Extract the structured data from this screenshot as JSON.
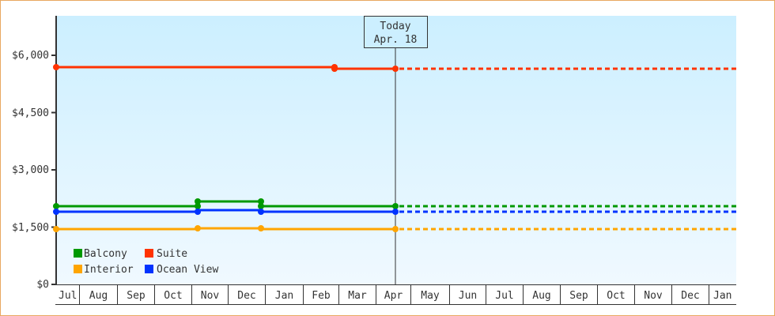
{
  "chart_data": {
    "type": "line",
    "title": "",
    "xlabel": "",
    "ylabel": "",
    "ylim": [
      0,
      7000
    ],
    "y_ticks": [
      "$0",
      "$1,500",
      "$3,000",
      "$4,500",
      "$6,000"
    ],
    "y_tick_values": [
      0,
      1500,
      3000,
      4500,
      6000
    ],
    "x_ticks": [
      "Jul",
      "Aug",
      "Sep",
      "Oct",
      "Nov",
      "Dec",
      "Jan",
      "Feb",
      "Mar",
      "Apr",
      "May",
      "Jun",
      "Jul",
      "Aug",
      "Sep",
      "Oct",
      "Nov",
      "Dec",
      "Jan"
    ],
    "today_marker": {
      "line1": "Today",
      "line2": "Apr. 18"
    },
    "legend": [
      "Balcony",
      "Suite",
      "Interior",
      "Ocean View"
    ],
    "series": [
      {
        "name": "Suite",
        "color": "#ff3300",
        "points": [
          {
            "x": "Jul",
            "y": 5680
          },
          {
            "x": "Mar 1",
            "y": 5680
          },
          {
            "x": "Mar 1",
            "y": 5650
          },
          {
            "x": "Apr 18",
            "y": 5650
          }
        ],
        "projected": 5650
      },
      {
        "name": "Balcony",
        "color": "#009900",
        "points": [
          {
            "x": "Jul",
            "y": 2060
          },
          {
            "x": "Nov",
            "y": 2060
          },
          {
            "x": "Nov",
            "y": 2180
          },
          {
            "x": "Dec 20",
            "y": 2180
          },
          {
            "x": "Dec 20",
            "y": 2060
          },
          {
            "x": "Apr 18",
            "y": 2060
          }
        ],
        "projected": 2060
      },
      {
        "name": "Ocean View",
        "color": "#0033ff",
        "points": [
          {
            "x": "Jul",
            "y": 1920
          },
          {
            "x": "Nov",
            "y": 1920
          },
          {
            "x": "Nov",
            "y": 1950
          },
          {
            "x": "Dec 20",
            "y": 1950
          },
          {
            "x": "Dec 20",
            "y": 1920
          },
          {
            "x": "Apr 18",
            "y": 1920
          }
        ],
        "projected": 1920
      },
      {
        "name": "Interior",
        "color": "#ffa500",
        "points": [
          {
            "x": "Jul",
            "y": 1460
          },
          {
            "x": "Nov",
            "y": 1460
          },
          {
            "x": "Nov",
            "y": 1480
          },
          {
            "x": "Dec 20",
            "y": 1480
          },
          {
            "x": "Dec 20",
            "y": 1460
          },
          {
            "x": "Apr 18",
            "y": 1460
          }
        ],
        "projected": 1460
      }
    ]
  },
  "yaxis": {
    "t0": "$0",
    "t1": "$1,500",
    "t2": "$3,000",
    "t3": "$4,500",
    "t4": "$6,000"
  },
  "today": {
    "line1": "Today",
    "line2": "Apr. 18"
  },
  "legend": {
    "balcony": "Balcony",
    "suite": "Suite",
    "interior": "Interior",
    "ocean": "Ocean View"
  },
  "months": [
    "Jul",
    "Aug",
    "Sep",
    "Oct",
    "Nov",
    "Dec",
    "Jan",
    "Feb",
    "Mar",
    "Apr",
    "May",
    "Jun",
    "Jul",
    "Aug",
    "Sep",
    "Oct",
    "Nov",
    "Dec",
    "Jan"
  ]
}
